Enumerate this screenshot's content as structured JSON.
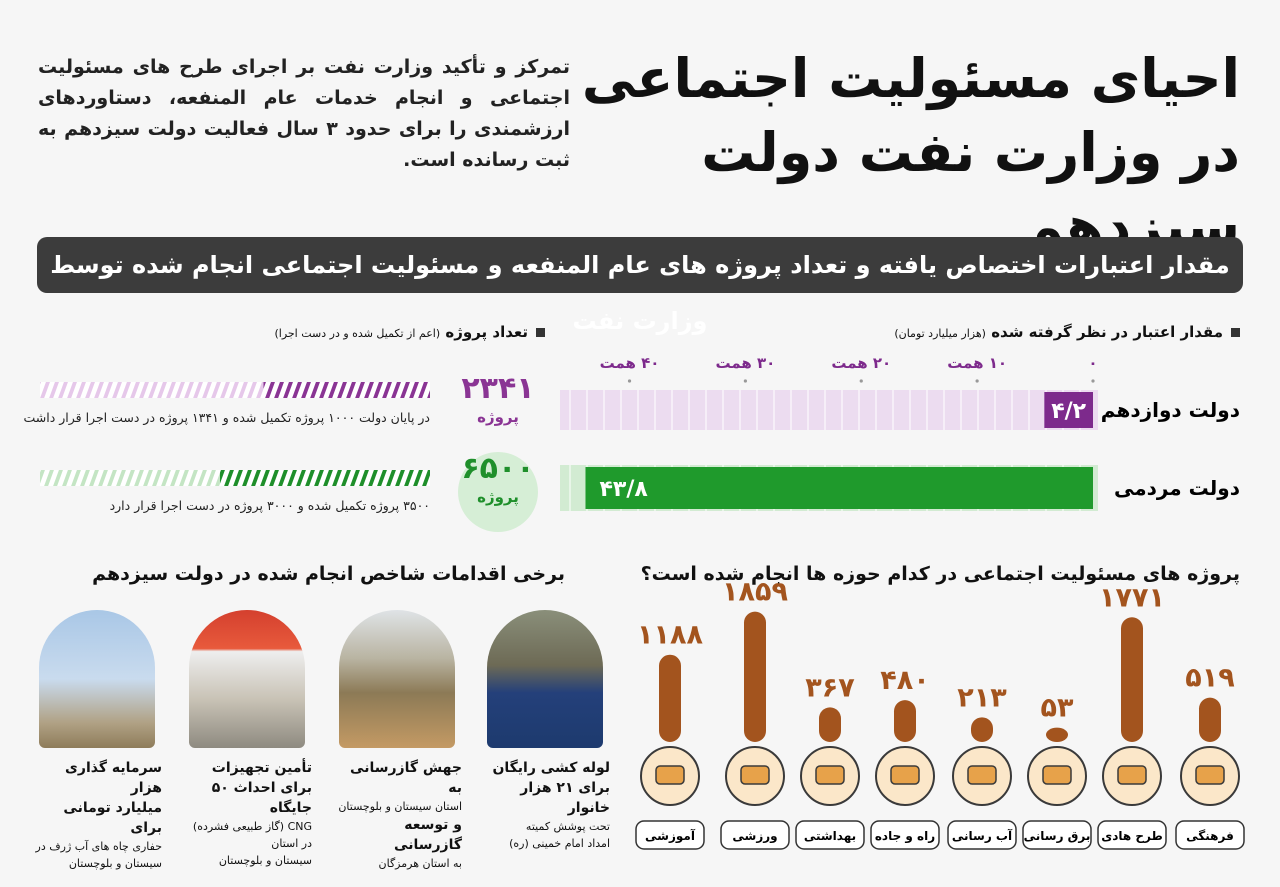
{
  "header": {
    "title_lines": [
      "احیای مسئولیت اجتماعی",
      "در وزارت نفت دولت سیزدهم"
    ],
    "intro": "تمرکز و تأکید وزارت نفت بر اجرای طرح های مسئولیت اجتماعی و انجام خدمات عام المنفعه، دستاوردهای ارزشمندی را برای حدود ۳ سال فعالیت دولت سیزدهم به ثبت رسانده است."
  },
  "banner": "مقدار اعتبارات اختصاص یافته و تعداد پروژه های عام المنفعه و مسئولیت اجتماعی انجام شده  توسط وزارت نفت",
  "chart_data": [
    {
      "type": "hbar",
      "title": "مقدار اعتبار در نظر گرفته شده",
      "subtitle": "(هزار میلیارد تومان)",
      "categories": [
        "دولت دوازدهم",
        "دولت مردمی"
      ],
      "values": [
        4.2,
        43.8
      ],
      "value_labels": [
        "۴/۲",
        "۴۳/۸"
      ],
      "colors": [
        "#7d2a8c",
        "#1f9a2c"
      ],
      "track_colors": [
        "#ecdcf0",
        "#d2ebd2"
      ],
      "xlim": [
        0,
        46
      ],
      "xticks": [
        {
          "value": 0,
          "label": "۰"
        },
        {
          "value": 10,
          "label": "۱۰ همت"
        },
        {
          "value": 20,
          "label": "۲۰ همت"
        },
        {
          "value": 30,
          "label": "۳۰ همت"
        },
        {
          "value": 40,
          "label": "۴۰ همت"
        }
      ],
      "reversed": true
    },
    {
      "type": "progress",
      "title": "تعداد پروژه",
      "subtitle": "(اعم از تکمیل شده و در دست اجرا)",
      "totals": [
        2341,
        6500
      ],
      "value_labels": [
        "۲۳۴۱",
        "۶۵۰۰"
      ],
      "unit_label": "پروژه",
      "completed": [
        1000,
        3500
      ],
      "in_progress": [
        1341,
        3000
      ],
      "notes": [
        "در پایان دولت ۱۰۰۰ پروژه تکمیل شده و ۱۳۴۱ پروژه در دست اجرا قرار داشت",
        "۳۵۰۰ پروژه تکمیل شده و ۳۰۰۰ پروژه در دست اجرا قرار دارد"
      ],
      "colors": [
        [
          "#8a3594",
          "#e6c8ea"
        ],
        [
          "#1f8f2b",
          "#c4e5c4"
        ]
      ]
    },
    {
      "type": "vbar",
      "title": "پروژه های مسئولیت اجتماعی در کدام حوزه ها انجام شده است؟",
      "categories": [
        "فرهنگی",
        "طرح هادی",
        "برق رسانی",
        "آب رسانی",
        "راه و جاده",
        "بهداشتی",
        "ورزشی",
        "آموزشی"
      ],
      "values": [
        519,
        1771,
        53,
        213,
        480,
        367,
        1859,
        1188
      ],
      "value_labels": [
        "۵۱۹",
        "۱۷۷۱",
        "۵۳",
        "۲۱۳",
        "۴۸۰",
        "۳۶۷",
        "۱۸۵۹",
        "۱۱۸۸"
      ],
      "color": "#a3541e",
      "ylim": [
        0,
        1900
      ]
    }
  ],
  "actions": {
    "title": "برخی اقدامات شاخص انجام شده در دولت سیزدهم",
    "items": [
      {
        "lines": [
          "لوله کشی رایگان",
          "برای ۲۱ هزار خانوار",
          "تحت پوشش کمیته",
          "امداد امام خمینی (ره)"
        ]
      },
      {
        "lines": [
          "جهش گازرسانی به",
          "استان سیستان و بلوچستان",
          "و توسعه گازرسانی",
          "به استان هرمزگان"
        ]
      },
      {
        "lines": [
          "تأمین تجهیزات",
          "برای احداث ۵۰ جایگاه",
          "CNG (گاز طبیعی فشرده) در استان",
          "سیستان و بلوچستان"
        ]
      },
      {
        "lines": [
          "سرمایه گذاری هزار",
          "میلیارد تومانی برای",
          "حفاری چاه های آب ژرف در",
          "سیستان و بلوچستان"
        ]
      }
    ]
  }
}
